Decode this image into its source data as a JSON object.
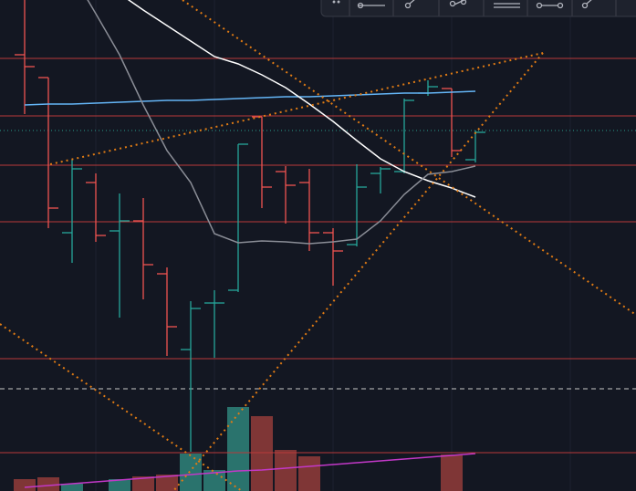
{
  "chart_data": {
    "type": "ohlc",
    "categories": [
      null,
      null,
      null,
      null,
      null,
      null,
      null,
      null,
      null,
      null,
      null,
      null,
      null,
      null,
      null,
      null,
      null,
      null,
      null,
      null
    ],
    "high": [
      538,
      453,
      363,
      348,
      326,
      321,
      245,
      208,
      220,
      380,
      410,
      356,
      353,
      288,
      358,
      355,
      430,
      450,
      441,
      395
    ],
    "low": [
      413,
      288,
      250,
      273,
      190,
      210,
      148,
      43,
      146,
      218,
      310,
      293,
      263,
      225,
      268,
      326,
      348,
      433,
      366,
      360
    ],
    "open": [
      478,
      453,
      283,
      338,
      285,
      296,
      238,
      155,
      206,
      220,
      410,
      350,
      338,
      283,
      270,
      348,
      350,
      436,
      441,
      363
    ],
    "close": [
      465,
      310,
      353,
      280,
      296,
      248,
      180,
      200,
      206,
      380,
      333,
      335,
      283,
      263,
      333,
      353,
      428,
      443,
      373,
      393
    ],
    "up_color": "#26a69a",
    "down_color": "#ef5350",
    "ylim": [
      0,
      538
    ],
    "volume": [
      13,
      15,
      8,
      null,
      13,
      16,
      18,
      41,
      23,
      92,
      82,
      45,
      38,
      null,
      null,
      null,
      null,
      null,
      40,
      null
    ],
    "volume_up_color": "#2a736d",
    "volume_down_color": "#7f3636",
    "y2lim": [
      0,
      538
    ],
    "moving_averages": [
      {
        "color": "#64b5f6",
        "values": [
          423,
          424,
          424,
          425,
          426,
          427,
          428,
          428,
          429,
          430,
          431,
          432,
          432,
          433,
          434,
          435,
          436,
          436,
          437,
          438
        ]
      },
      {
        "color": "#ffffff",
        "values": [
          null,
          null,
          null,
          null,
          545,
          527,
          510,
          493,
          476,
          468,
          456,
          442,
          424,
          405,
          384,
          364,
          350,
          340,
          332,
          322
        ]
      },
      {
        "color": "#8a8d96",
        "values": [
          null,
          null,
          567,
          523,
          478,
          423,
          373,
          338,
          282,
          272,
          274,
          273,
          271,
          273,
          276,
          296,
          325,
          347,
          350,
          356
        ]
      },
      {
        "axis": "y2",
        "color": "#c238c8",
        "values": [
          4,
          6,
          8,
          10,
          12,
          14,
          16,
          18,
          20,
          22,
          23,
          25,
          27,
          29,
          31,
          33,
          35,
          37,
          39,
          41
        ]
      }
    ]
  }
}
